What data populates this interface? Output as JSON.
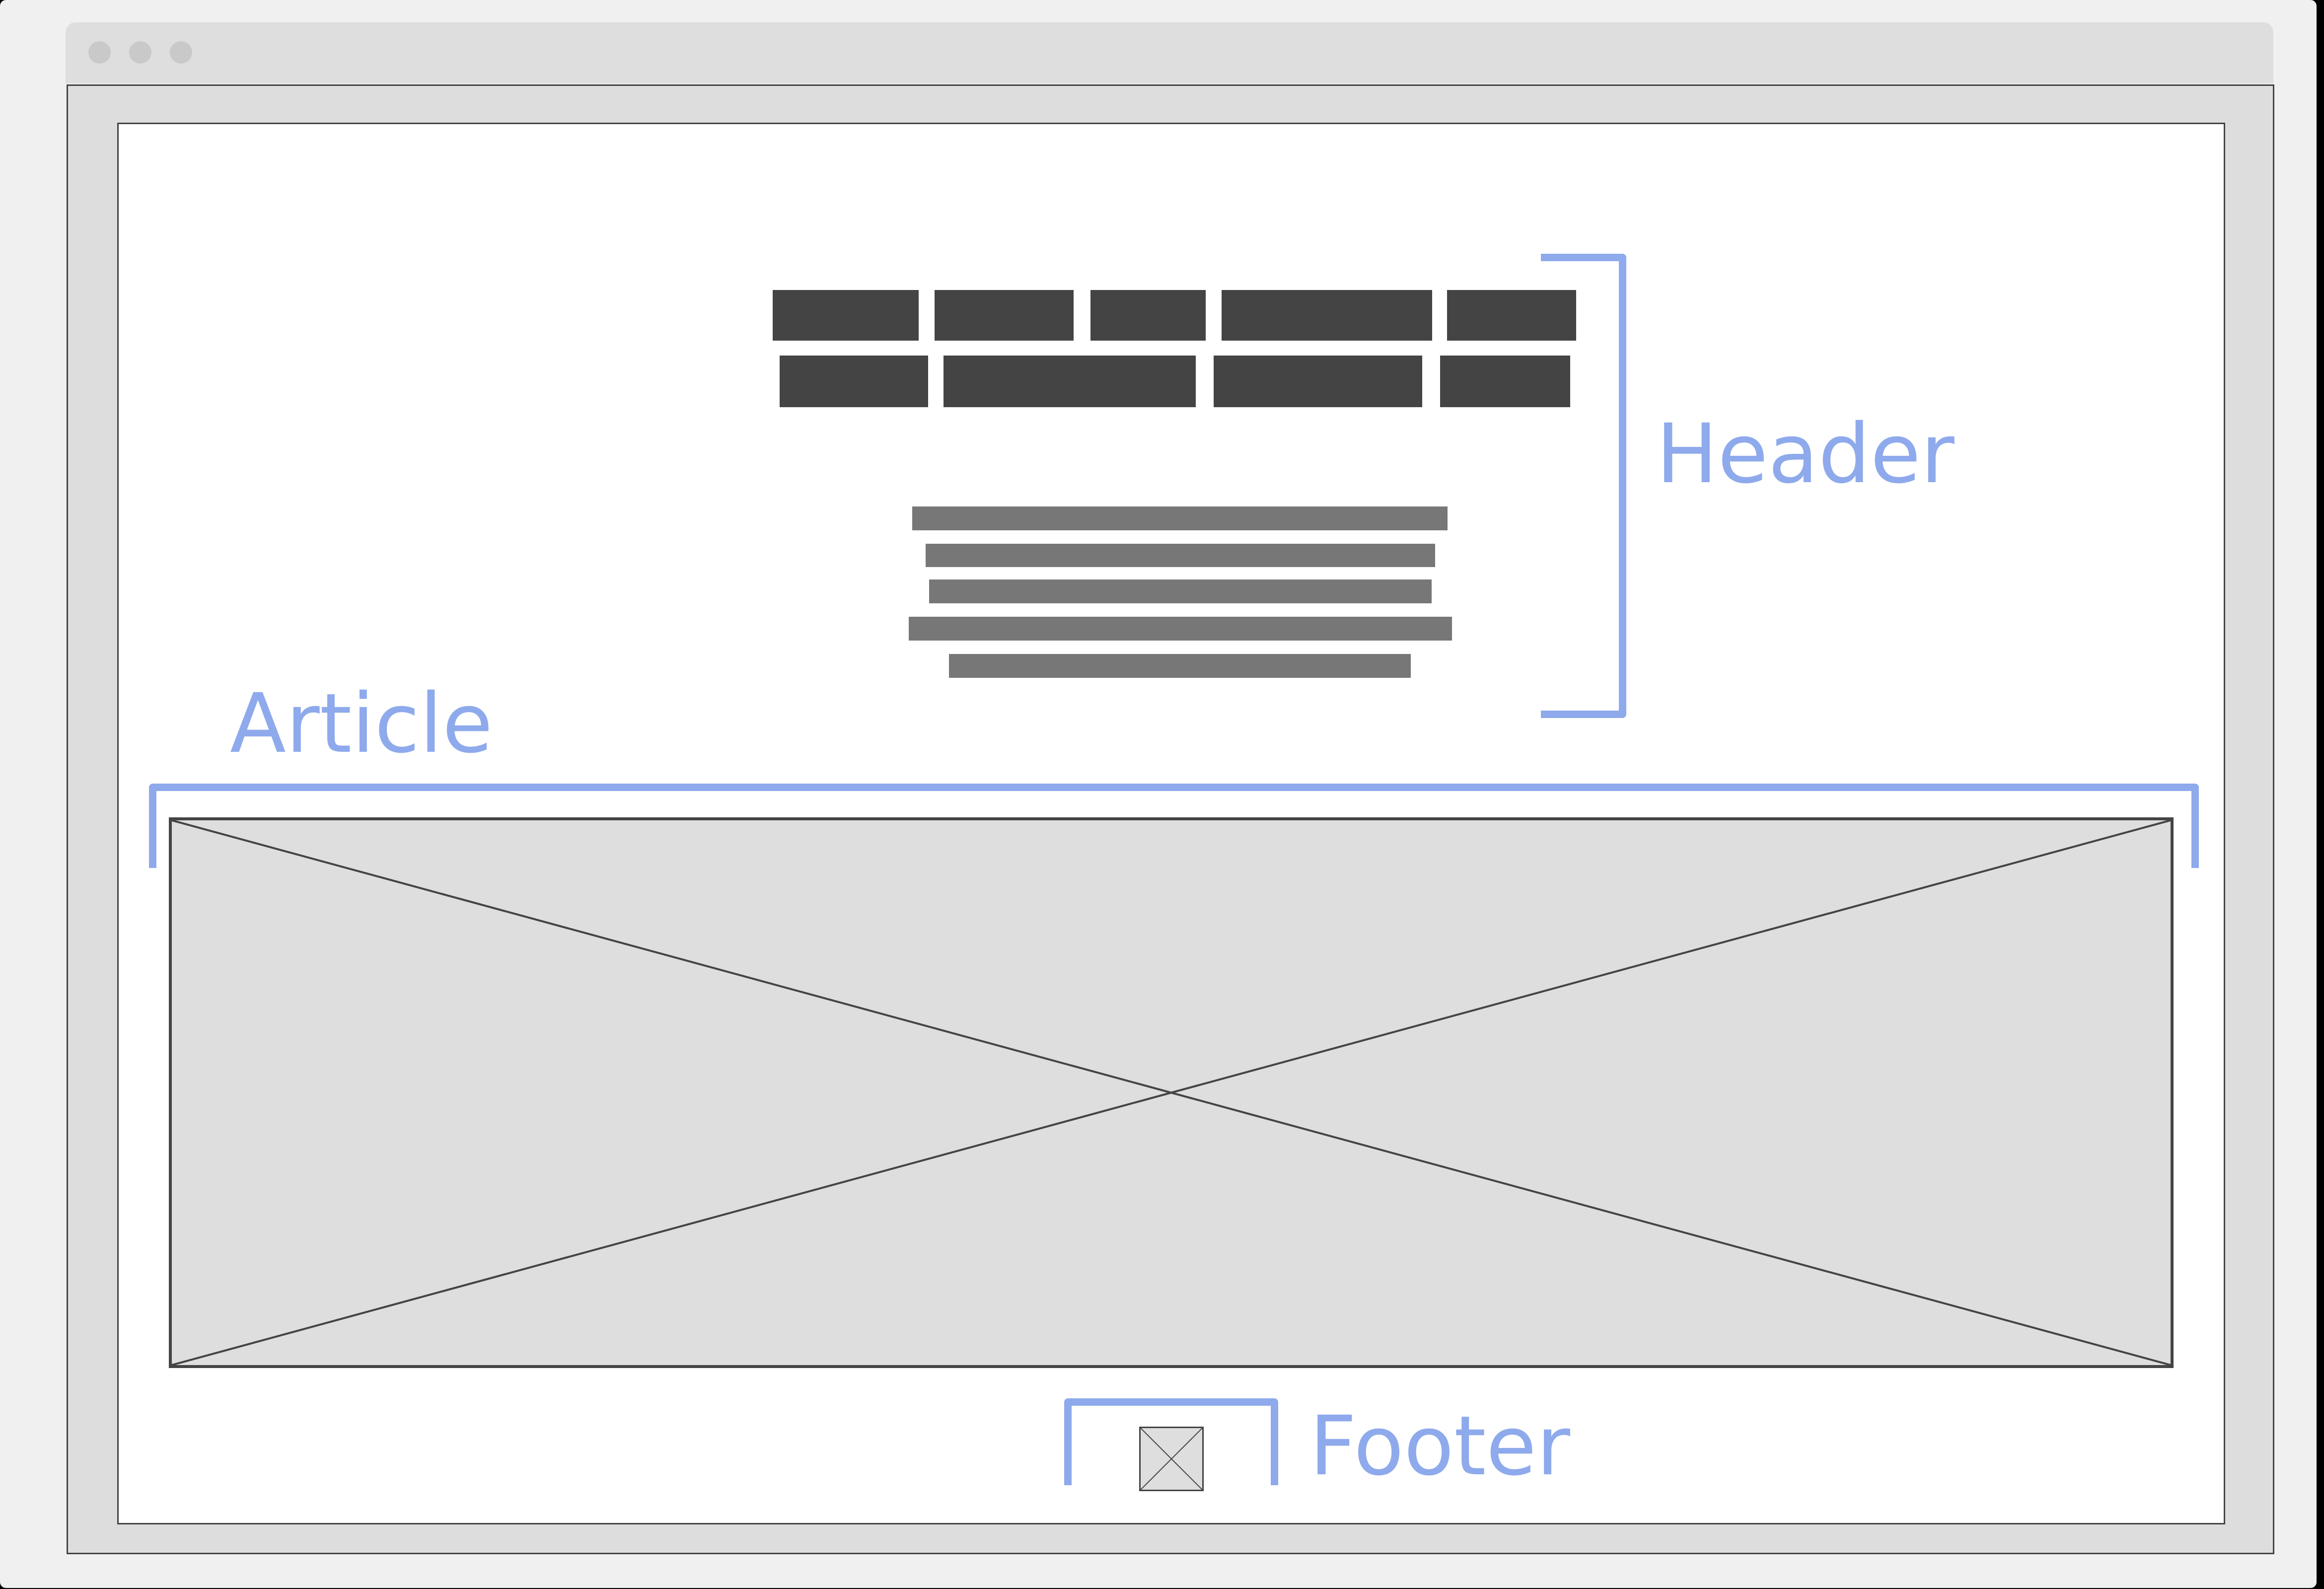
{
  "window": {
    "controls": [
      "window-dot",
      "window-dot",
      "window-dot"
    ]
  },
  "annotations": {
    "header": "Header",
    "article": "Article",
    "footer": "Footer",
    "color": "#8eaaec"
  },
  "wireframe": {
    "heading_rows": 2,
    "heading_blocks_per_row": [
      5,
      4
    ],
    "paragraph_lines": 5,
    "placeholder_color": "#dedede",
    "block_color": "#444444",
    "line_color": "#777777"
  }
}
